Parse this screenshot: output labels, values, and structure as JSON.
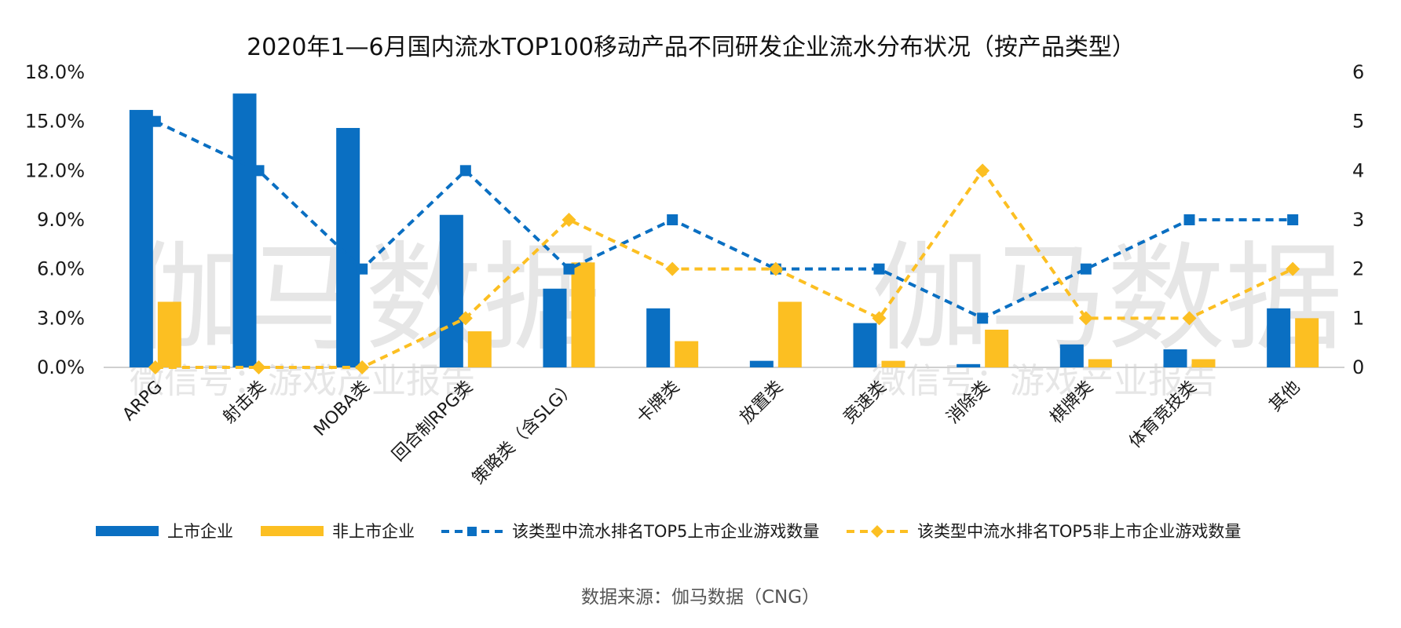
{
  "chart_data": {
    "type": "bar",
    "title": "2020年1—6月国内流水TOP100移动产品不同研发企业流水分布状况（按产品类型）",
    "categories": [
      "ARPG",
      "射击类",
      "MOBA类",
      "回合制RPG类",
      "策略类（含SLG）",
      "卡牌类",
      "放置类",
      "竞速类",
      "消除类",
      "棋牌类",
      "体育竞技类",
      "其他"
    ],
    "series": [
      {
        "name": "上市企业",
        "kind": "bar",
        "axis": "left",
        "values": [
          15.7,
          16.7,
          14.6,
          9.3,
          4.8,
          3.6,
          0.4,
          2.7,
          0.2,
          1.4,
          1.1,
          3.6
        ]
      },
      {
        "name": "非上市企业",
        "kind": "bar",
        "axis": "left",
        "values": [
          4.0,
          0,
          0,
          2.2,
          6.4,
          1.6,
          4.0,
          0.4,
          2.3,
          0.5,
          0.5,
          3.0
        ]
      },
      {
        "name": "该类型中流水排名TOP5上市企业游戏数量",
        "kind": "line",
        "axis": "right",
        "marker": "square",
        "values": [
          5,
          4,
          2,
          4,
          2,
          3,
          2,
          2,
          1,
          2,
          3,
          3
        ]
      },
      {
        "name": "该类型中流水排名TOP5非上市企业游戏数量",
        "kind": "line",
        "axis": "right",
        "marker": "diamond",
        "values": [
          0,
          0,
          0,
          1,
          3,
          2,
          2,
          1,
          4,
          1,
          1,
          2
        ]
      }
    ],
    "y_left": {
      "min": 0,
      "max": 18,
      "ticks": [
        "0.0%",
        "3.0%",
        "6.0%",
        "9.0%",
        "12.0%",
        "15.0%",
        "18.0%"
      ]
    },
    "y_right": {
      "min": 0,
      "max": 6,
      "ticks": [
        "0",
        "1",
        "2",
        "3",
        "4",
        "5",
        "6"
      ]
    },
    "legend_position": "bottom",
    "grid": false,
    "colors": {
      "listed": "#0a6fc2",
      "unlisted": "#fcbf22"
    }
  },
  "source": "数据来源：伽马数据（CNG）",
  "watermark": {
    "main": "伽马数据",
    "sub": "微信号：游戏产业报告"
  }
}
